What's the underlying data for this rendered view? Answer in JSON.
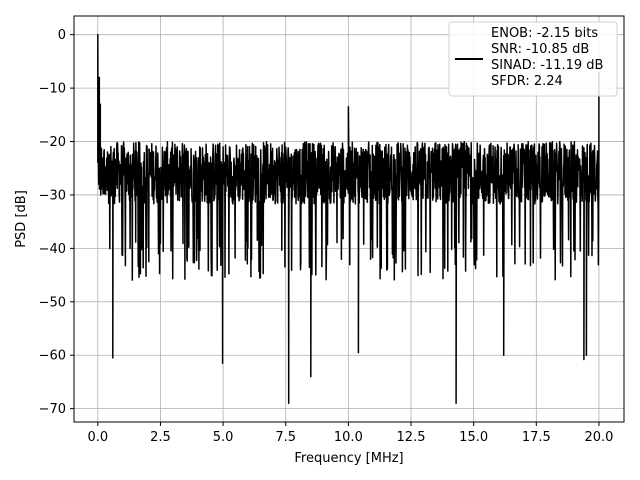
{
  "chart_data": {
    "type": "line",
    "title": "",
    "xlabel": "Frequency [MHz]",
    "ylabel": "PSD [dB]",
    "xlim": [
      -0.95,
      21.0
    ],
    "ylim": [
      -72.5,
      3.5
    ],
    "xticks": [
      0.0,
      2.5,
      5.0,
      7.5,
      10.0,
      12.5,
      15.0,
      17.5,
      20.0
    ],
    "xtick_labels": [
      "0.0",
      "2.5",
      "5.0",
      "7.5",
      "10.0",
      "12.5",
      "15.0",
      "17.5",
      "20.0"
    ],
    "yticks": [
      0,
      -10,
      -20,
      -30,
      -40,
      -50,
      -60,
      -70
    ],
    "ytick_labels": [
      "0",
      "−10",
      "−20",
      "−30",
      "−40",
      "−50",
      "−60",
      "−70"
    ],
    "grid": true,
    "legend_position": "top-right",
    "series": [
      {
        "color": "#000000",
        "legend_lines": [
          "ENOB: -2.15 bits",
          "SNR: -10.85 dB",
          "SINAD: -11.19 dB",
          "SFDR: 2.24"
        ],
        "noise_floor": [
          -38,
          -20
        ],
        "peaks": [
          {
            "x": 0.0,
            "y": 0.0
          },
          {
            "x": 10.0,
            "y": -13.5
          },
          {
            "x": 20.0,
            "y": -7.0
          }
        ],
        "dips": [
          {
            "x": 0.6,
            "y": -60.5
          },
          {
            "x": 4.98,
            "y": -61.5
          },
          {
            "x": 7.62,
            "y": -69.0
          },
          {
            "x": 8.5,
            "y": -64.0
          },
          {
            "x": 10.4,
            "y": -59.5
          },
          {
            "x": 14.3,
            "y": -69.0
          },
          {
            "x": 16.2,
            "y": -60.0
          },
          {
            "x": 19.4,
            "y": -60.8
          },
          {
            "x": 19.5,
            "y": -60.0
          }
        ]
      }
    ]
  }
}
